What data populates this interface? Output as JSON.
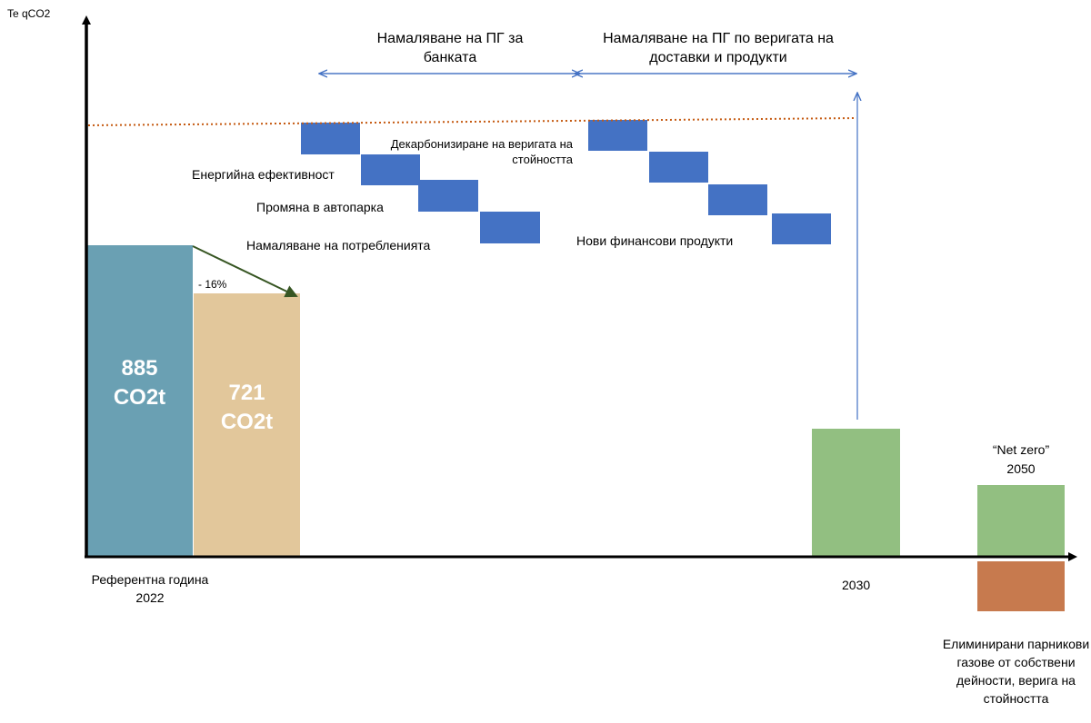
{
  "chart_data": {
    "type": "bar",
    "ylabel": "Te qCO2",
    "bars": [
      {
        "category": "Референтна година 2022",
        "value_label": "885",
        "unit_label": "CO2t",
        "color": "#6aa0b3"
      },
      {
        "category": "",
        "value_label": "721",
        "unit_label": "CO2t",
        "color": "#e2c79b"
      },
      {
        "category": "2030",
        "color": "#92bf81"
      },
      {
        "category": "“Net zero” 2050",
        "color": "#92bf81"
      }
    ],
    "x_labels": {
      "reference": "Референтна година 2022",
      "y2030": "2030",
      "netzero_title": "“Net zero”",
      "netzero_year": "2050",
      "eliminated": "Елиминирани парникови газове от собствени дейности, верига на стойността"
    },
    "reduction_label": "- 16%",
    "phases": [
      {
        "title": "Намаляване на ПГ за банката"
      },
      {
        "title": "Намаляване на ПГ по веригата на доставки и продукти"
      }
    ],
    "measures": [
      {
        "label": "Декарбонизиране на веригата на стойността"
      },
      {
        "label": "Енергийна ефективност"
      },
      {
        "label": "Промяна в автопарка"
      },
      {
        "label": "Намаляване на потребленията"
      },
      {
        "label": "Нови финансови продукти"
      }
    ],
    "colors": {
      "axis": "#000000",
      "measure_block": "#4472c4",
      "arrow_blue": "#4472c4",
      "trend_arrow": "#375623",
      "dotted_line": "#c55a11",
      "eliminated_bar": "#c77a4e"
    }
  }
}
